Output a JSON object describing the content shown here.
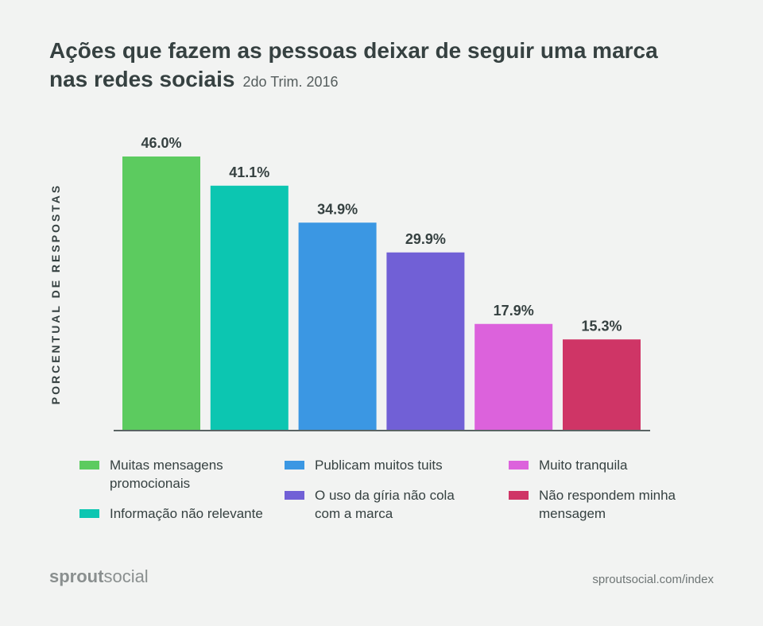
{
  "title": "Ações que fazem as pessoas deixar de seguir uma marca nas redes sociais",
  "subtitle": "2do Trim. 2016",
  "ylabel": "PORCENTUAL DE RESPOSTAS",
  "brand": {
    "part1": "sprout",
    "part2": "social"
  },
  "url": "sproutsocial.com/index",
  "chart_data": {
    "type": "bar",
    "title": "Ações que fazem as pessoas deixar de seguir uma marca nas redes sociais",
    "subtitle": "2do Trim. 2016",
    "ylabel": "PORCENTUAL DE RESPOSTAS",
    "xlabel": "",
    "ylim": [
      0,
      50
    ],
    "grid": false,
    "legend_position": "bottom",
    "categories": [
      "Muitas mensagens promocionais",
      "Informação não relevante",
      "Publicam muitos tuits",
      "O uso da gíria não cola com a marca",
      "Muito tranquila",
      "Não respondem minha mensagem"
    ],
    "values": [
      46.0,
      41.1,
      34.9,
      29.9,
      17.9,
      15.3
    ],
    "labels": [
      "46.0%",
      "41.1%",
      "34.9%",
      "29.9%",
      "17.9%",
      "15.3%"
    ],
    "colors": [
      "#5ccb5f",
      "#0cc6b1",
      "#3b97e3",
      "#7160d6",
      "#dc62dc",
      "#cf3566"
    ]
  },
  "legend": [
    {
      "label": "Muitas mensagens promocionais",
      "color": "#5ccb5f"
    },
    {
      "label": "Informação não relevante",
      "color": "#0cc6b1"
    },
    {
      "label": "Publicam muitos tuits",
      "color": "#3b97e3"
    },
    {
      "label": "O uso da gíria não cola com a marca",
      "color": "#7160d6"
    },
    {
      "label": "Muito tranquila",
      "color": "#dc62dc"
    },
    {
      "label": "Não respondem minha mensagem",
      "color": "#cf3566"
    }
  ]
}
